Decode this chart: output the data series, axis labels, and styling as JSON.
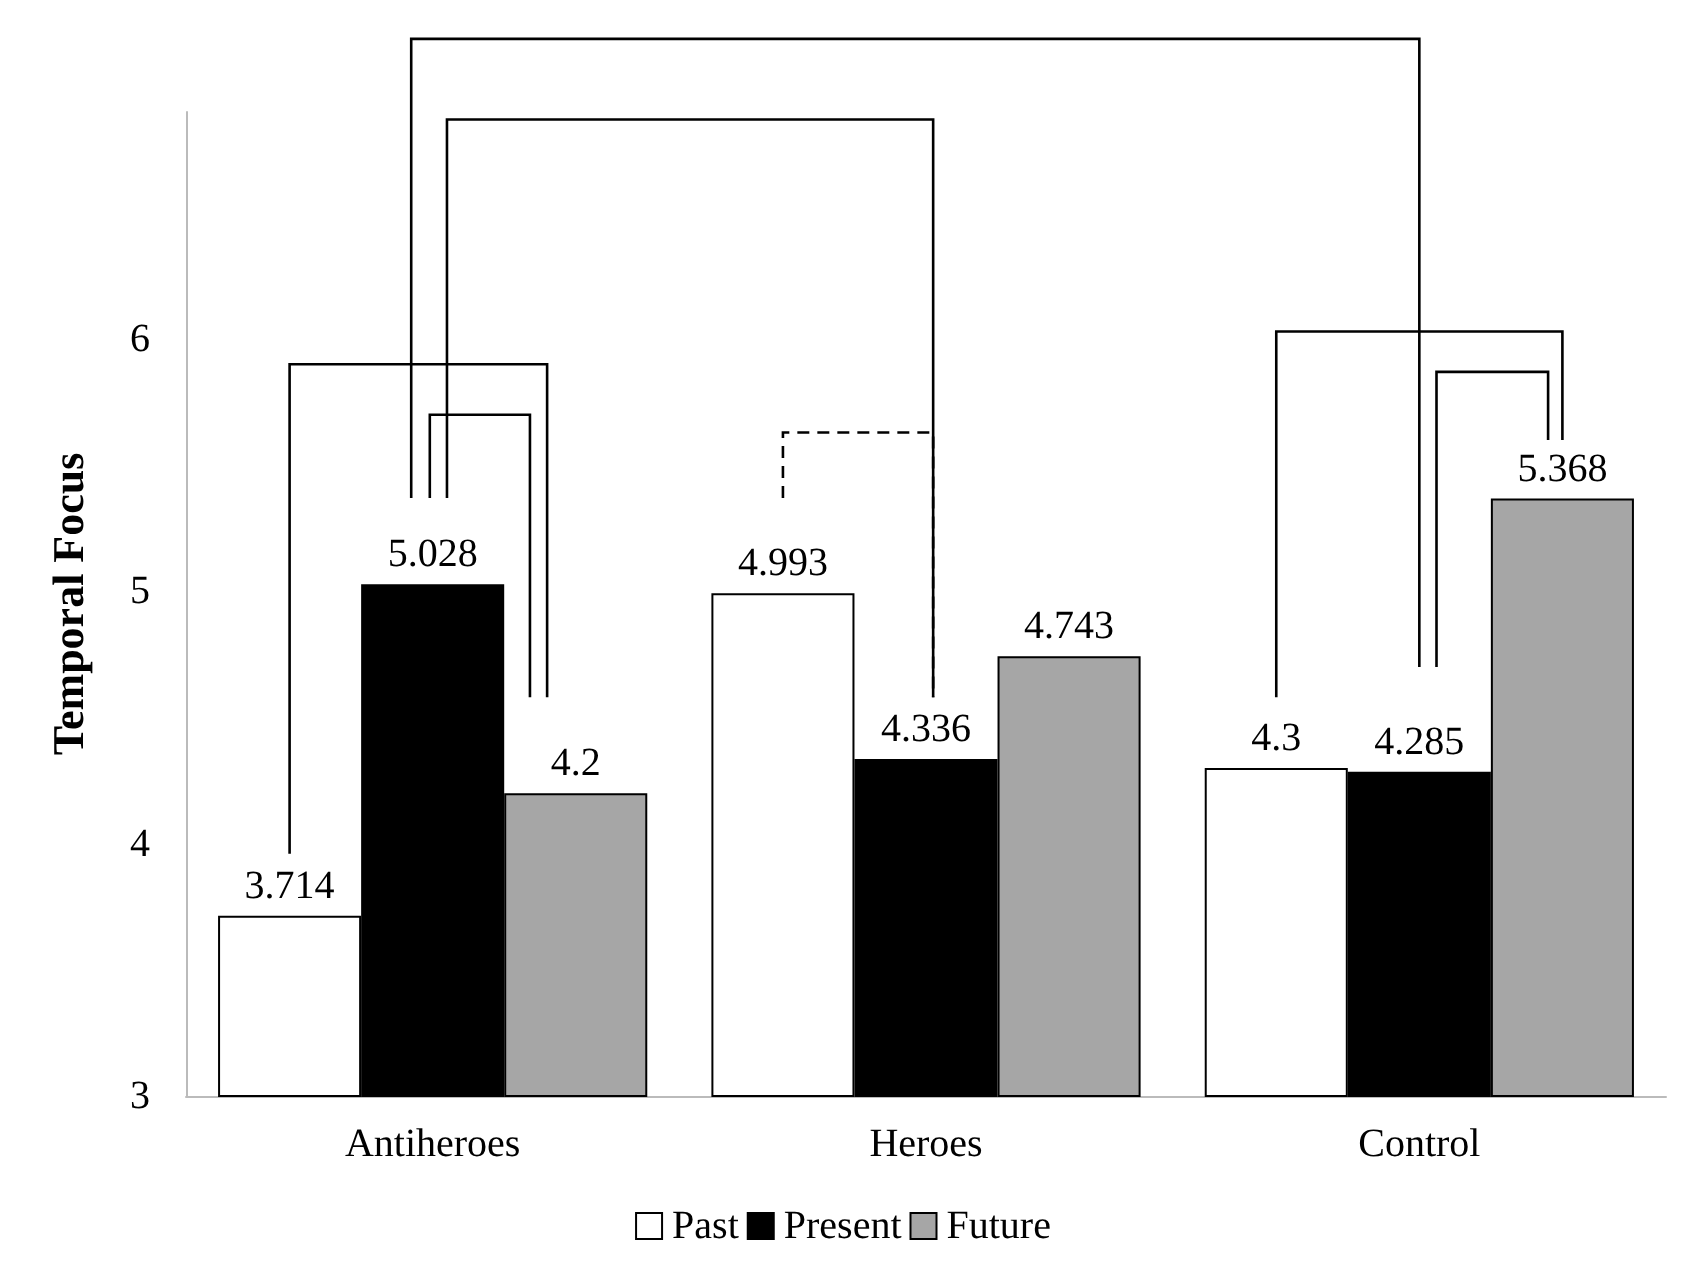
{
  "chart_data": {
    "type": "bar",
    "ylabel": "Temporal Focus",
    "categories": [
      "Antiheroes",
      "Heroes",
      "Control"
    ],
    "series": [
      {
        "name": "Past",
        "color": "#ffffff",
        "values": [
          3.714,
          4.993,
          4.3
        ]
      },
      {
        "name": "Present",
        "color": "#000000",
        "values": [
          5.028,
          4.336,
          4.285
        ]
      },
      {
        "name": "Future",
        "color": "#a6a6a6",
        "values": [
          4.2,
          4.743,
          5.368
        ]
      }
    ],
    "ylim": [
      3,
      6.9
    ],
    "yticks": [
      3,
      4,
      5,
      6
    ],
    "data_labels": true,
    "legend": "bottom",
    "grid": false
  }
}
